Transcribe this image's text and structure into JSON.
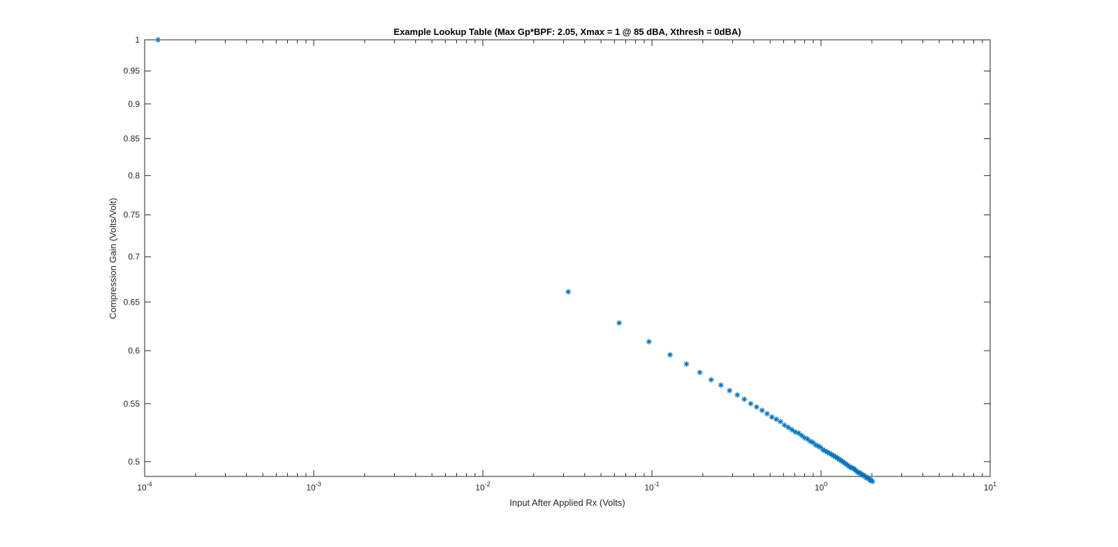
{
  "chart_data": {
    "type": "scatter",
    "title": "Example Lookup Table (Max Gp*BPF: 2.05, Xmax = 1 @ 85 dBA, Xthresh = 0dBA)",
    "xlabel": "Input After Applied Rx (Volts)",
    "ylabel": "Compression Gain (Volts/Volt)",
    "xscale": "log",
    "yscale": "log",
    "xlim": [
      0.0001,
      10
    ],
    "ylim": [
      0.488,
      1.0
    ],
    "xticks": [
      0.0001,
      0.001,
      0.01,
      0.1,
      1,
      10
    ],
    "xtick_bases": [
      "10",
      "10",
      "10",
      "10",
      "10",
      "10"
    ],
    "xtick_exponents": [
      "-4",
      "-3",
      "-2",
      "-1",
      "0",
      "1"
    ],
    "yticks": [
      0.5,
      0.55,
      0.6,
      0.65,
      0.7,
      0.75,
      0.8,
      0.85,
      0.9,
      0.95,
      1
    ],
    "ytick_labels": [
      "0.5",
      "0.55",
      "0.6",
      "0.65",
      "0.7",
      "0.75",
      "0.8",
      "0.85",
      "0.9",
      "0.95",
      "1"
    ],
    "grid": false,
    "marker": "*",
    "color": "#0072BD",
    "x": [
      0.00012,
      0.032,
      0.064,
      0.096,
      0.128,
      0.16,
      0.192,
      0.224,
      0.256,
      0.288,
      0.32,
      0.352,
      0.384,
      0.416,
      0.448,
      0.48,
      0.512,
      0.544,
      0.576,
      0.608,
      0.64,
      0.672,
      0.704,
      0.736,
      0.768,
      0.8,
      0.832,
      0.864,
      0.896,
      0.928,
      0.96,
      0.992,
      1.024,
      1.056,
      1.088,
      1.12,
      1.152,
      1.184,
      1.216,
      1.248,
      1.28,
      1.312,
      1.344,
      1.376,
      1.408,
      1.44,
      1.472,
      1.504,
      1.536,
      1.568,
      1.6,
      1.632,
      1.664,
      1.696,
      1.728,
      1.76,
      1.792,
      1.824,
      1.856,
      1.888,
      1.92,
      1.952,
      1.984,
      2.016
    ],
    "y": [
      1.0,
      0.661,
      0.628,
      0.609,
      0.596,
      0.587,
      0.579,
      0.572,
      0.567,
      0.562,
      0.558,
      0.554,
      0.55,
      0.547,
      0.544,
      0.541,
      0.538,
      0.536,
      0.534,
      0.531,
      0.529,
      0.527,
      0.525,
      0.524,
      0.522,
      0.52,
      0.519,
      0.517,
      0.516,
      0.514,
      0.513,
      0.512,
      0.51,
      0.509,
      0.508,
      0.507,
      0.506,
      0.505,
      0.504,
      0.503,
      0.502,
      0.501,
      0.5,
      0.499,
      0.498,
      0.497,
      0.496,
      0.495,
      0.495,
      0.494,
      0.493,
      0.492,
      0.491,
      0.491,
      0.49,
      0.489,
      0.489,
      0.488,
      0.487,
      0.487,
      0.486,
      0.485,
      0.485,
      0.484
    ]
  }
}
